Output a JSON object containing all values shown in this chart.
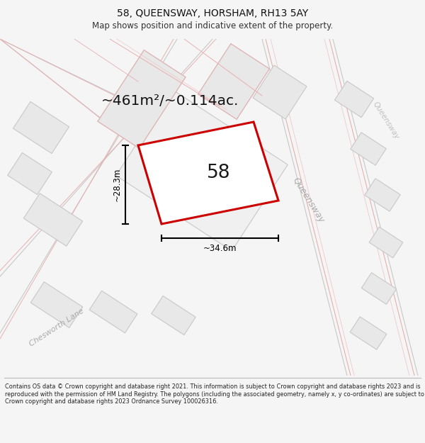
{
  "title": "58, QUEENSWAY, HORSHAM, RH13 5AY",
  "subtitle": "Map shows position and indicative extent of the property.",
  "area_text": "~461m²/~0.114ac.",
  "label": "58",
  "dim_width": "~34.6m",
  "dim_height": "~28.3m",
  "street_queensway": "Queensway",
  "street_chesworth": "Chesworth Lane",
  "footer": "Contains OS data © Crown copyright and database right 2021. This information is subject to Crown copyright and database rights 2023 and is reproduced with the permission of HM Land Registry. The polygons (including the associated geometry, namely x, y co-ordinates) are subject to Crown copyright and database rights 2023 Ordnance Survey 100026316.",
  "bg_color": "#f5f5f5",
  "map_bg": "#ffffff",
  "bld_fill": "#e8e8e8",
  "bld_outline": "#c8c8c8",
  "road_bg": "#f0f0f0",
  "pink": "#e8b0b0",
  "pink_light": "#f0c8c8",
  "gray_line": "#c8c8c8",
  "red_plot": "#cc0000",
  "plot_fill": "#ffffff"
}
